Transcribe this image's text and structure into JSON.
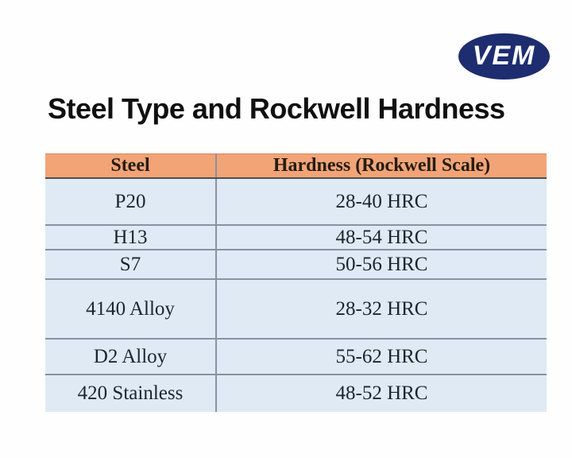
{
  "logo": {
    "text": "VEM",
    "bg_color": "#1d2d6f",
    "text_color": "#ffffff"
  },
  "chart_data": {
    "type": "table",
    "title": "Steel Type and Rockwell Hardness",
    "columns": [
      "Steel",
      "Hardness (Rockwell Scale)"
    ],
    "rows": [
      [
        "P20",
        "28-40 HRC"
      ],
      [
        "H13",
        "48-54 HRC"
      ],
      [
        "S7",
        "50-56 HRC"
      ],
      [
        "4140 Alloy",
        "28-32 HRC"
      ],
      [
        "D2 Alloy",
        "55-62 HRC"
      ],
      [
        "420 Stainless",
        "48-52 HRC"
      ]
    ]
  },
  "colors": {
    "header_bg": "#f2a477",
    "row_bg": "#dfeaf5",
    "divider": "#87939f",
    "cell_text": "#1d2430",
    "logo_navy": "#1d2d6f"
  }
}
